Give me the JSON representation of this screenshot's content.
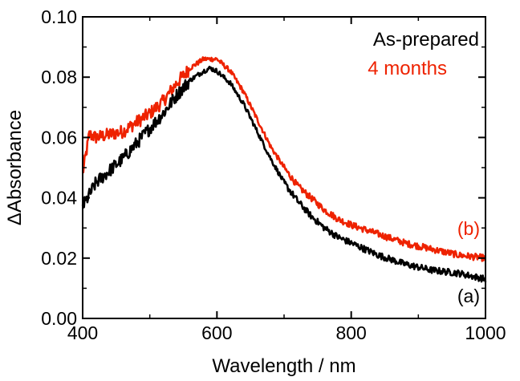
{
  "chart_data": {
    "type": "line",
    "title": "",
    "xlabel": "Wavelength / nm",
    "ylabel": "ΔAbsorbance",
    "xlim": [
      400,
      1000
    ],
    "ylim": [
      0.0,
      0.1
    ],
    "xticks": [
      400,
      600,
      800,
      1000
    ],
    "xtick_labels": [
      "400",
      "600",
      "800",
      "1000"
    ],
    "yticks": [
      0.0,
      0.02,
      0.04,
      0.06,
      0.08,
      0.1
    ],
    "ytick_labels": [
      "0.00",
      "0.02",
      "0.04",
      "0.06",
      "0.08",
      "0.10"
    ],
    "legend_position": "top-right",
    "series": [
      {
        "name": "As-prepared",
        "curve_label": "(a)",
        "color": "#000000",
        "x": [
          400,
          420,
          440,
          460,
          480,
          500,
          520,
          540,
          560,
          580,
          590,
          600,
          620,
          640,
          660,
          680,
          700,
          720,
          740,
          760,
          780,
          800,
          840,
          880,
          920,
          960,
          1000
        ],
        "values": [
          0.037,
          0.045,
          0.049,
          0.053,
          0.058,
          0.063,
          0.068,
          0.074,
          0.079,
          0.082,
          0.083,
          0.082,
          0.078,
          0.071,
          0.062,
          0.053,
          0.045,
          0.039,
          0.034,
          0.03,
          0.027,
          0.025,
          0.021,
          0.018,
          0.016,
          0.015,
          0.013
        ]
      },
      {
        "name": "4 months",
        "curve_label": "(b)",
        "color": "#ee2200",
        "x": [
          400,
          410,
          420,
          440,
          460,
          480,
          500,
          520,
          540,
          560,
          580,
          590,
          600,
          620,
          640,
          660,
          680,
          700,
          720,
          740,
          760,
          780,
          800,
          840,
          880,
          920,
          960,
          1000
        ],
        "values": [
          0.048,
          0.061,
          0.06,
          0.061,
          0.062,
          0.065,
          0.068,
          0.072,
          0.078,
          0.083,
          0.086,
          0.086,
          0.086,
          0.082,
          0.075,
          0.066,
          0.057,
          0.05,
          0.044,
          0.04,
          0.036,
          0.033,
          0.031,
          0.028,
          0.025,
          0.023,
          0.021,
          0.02
        ]
      }
    ]
  }
}
